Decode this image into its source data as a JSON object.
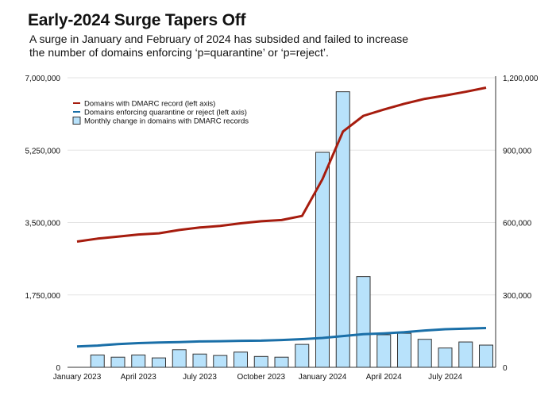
{
  "chart_data": {
    "type": "bar+line",
    "title": "Early-2024 Surge Tapers Off",
    "subtitle": "A surge in January and February of 2024 has subsided and failed to increase the number of domains enforcing ‘p=quarantine’ or ‘p=reject’.",
    "x": [
      "2023-01",
      "2023-02",
      "2023-03",
      "2023-04",
      "2023-05",
      "2023-06",
      "2023-07",
      "2023-08",
      "2023-09",
      "2023-10",
      "2023-11",
      "2023-12",
      "2024-01",
      "2024-02",
      "2024-03",
      "2024-04",
      "2024-05",
      "2024-06",
      "2024-07",
      "2024-08",
      "2024-09"
    ],
    "x_tick_labels": [
      "January 2023",
      "April 2023",
      "July 2023",
      "October 2023",
      "January 2024",
      "April 2024",
      "July 2024"
    ],
    "left_axis": {
      "ylim": [
        0,
        7000000
      ],
      "ticks": [
        "0",
        "1,750,000",
        "3,500,000",
        "5,250,000",
        "7,000,000"
      ]
    },
    "right_axis": {
      "ylim": [
        0,
        1200000
      ],
      "ticks": [
        "0",
        "300,000",
        "600,000",
        "900,000",
        "1,200,000"
      ]
    },
    "grid": true,
    "legend_placement": "top-left",
    "series": [
      {
        "name": "Domains with DMARC record (left axis)",
        "type": "line",
        "axis": "left",
        "color": "#a61c0e",
        "values": [
          3040000,
          3110000,
          3160000,
          3210000,
          3240000,
          3320000,
          3380000,
          3420000,
          3480000,
          3530000,
          3560000,
          3660000,
          4550000,
          5700000,
          6080000,
          6230000,
          6370000,
          6490000,
          6570000,
          6660000,
          6760000
        ]
      },
      {
        "name": "Domains enforcing quarantine or reject (left axis)",
        "type": "line",
        "axis": "left",
        "color": "#1a6fa8",
        "values": [
          505000,
          525000,
          560000,
          585000,
          600000,
          610000,
          625000,
          630000,
          640000,
          645000,
          660000,
          680000,
          710000,
          755000,
          800000,
          820000,
          850000,
          890000,
          920000,
          935000,
          950000
        ]
      },
      {
        "name": "Monthly change in domains with DMARC records",
        "type": "bar",
        "axis": "right",
        "color": "#b8e2fb",
        "values": [
          null,
          51000,
          42000,
          51000,
          39000,
          73000,
          55000,
          49000,
          63000,
          45000,
          42000,
          95000,
          891000,
          1142000,
          376000,
          135000,
          141000,
          116000,
          80000,
          105000,
          92000
        ]
      }
    ]
  }
}
